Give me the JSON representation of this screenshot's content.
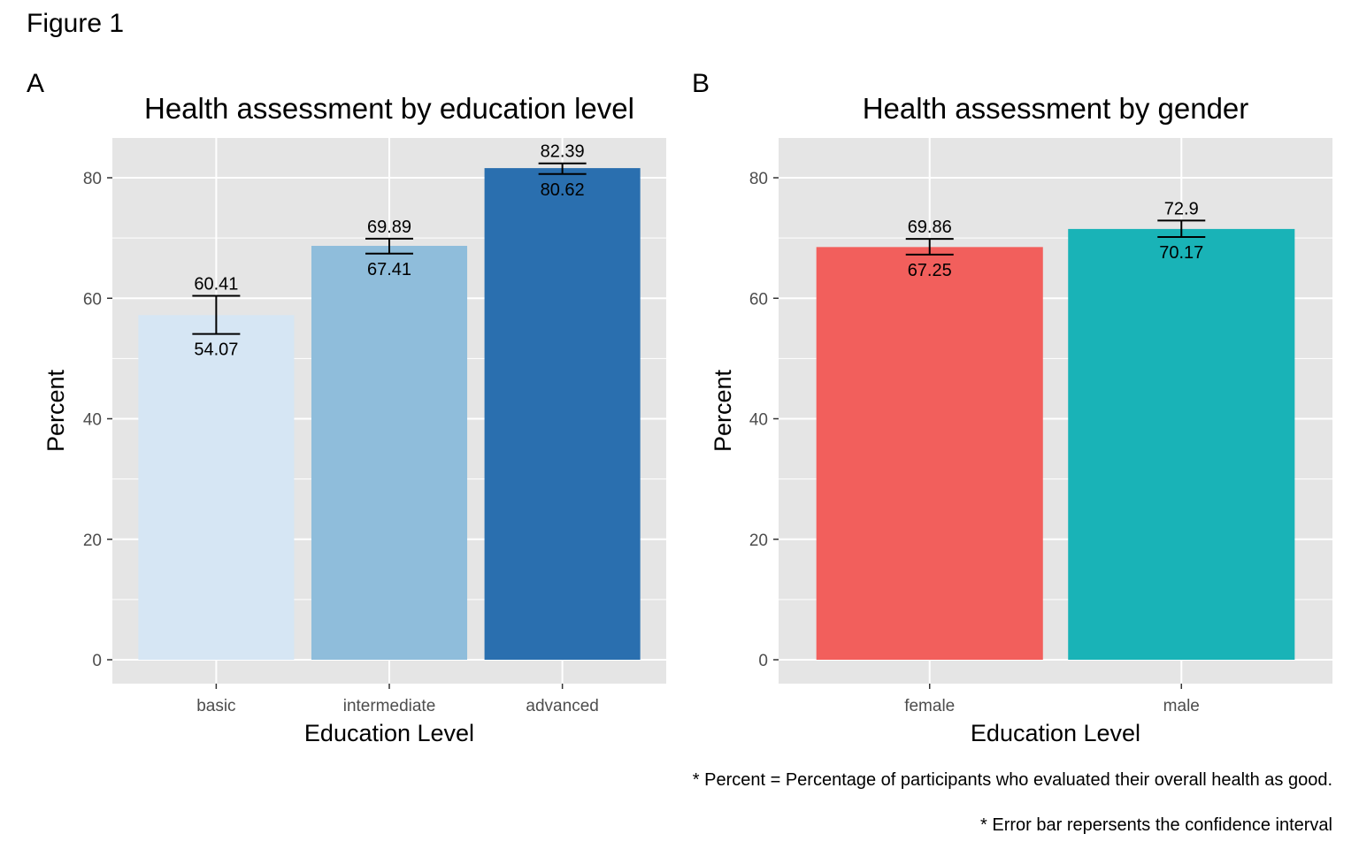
{
  "figure": {
    "title": "Figure 1",
    "footnotes": [
      "* Percent = Percentage of participants who evaluated their overall health as good.",
      "* Error bar repersents the confidence interval"
    ]
  },
  "chart_data": [
    {
      "panel_tag": "A",
      "type": "bar",
      "title": "Health assessment by education level",
      "xlabel": "Education Level",
      "ylabel": "Percent",
      "ylim": [
        0,
        87
      ],
      "yticks": [
        0,
        20,
        40,
        60,
        80
      ],
      "categories": [
        "basic",
        "intermediate",
        "advanced"
      ],
      "values": [
        57.2,
        68.7,
        81.6
      ],
      "ci_lower": [
        54.07,
        67.41,
        80.62
      ],
      "ci_upper": [
        60.41,
        69.89,
        82.39
      ],
      "ci_lower_labels": [
        "54.07",
        "67.41",
        "80.62"
      ],
      "ci_upper_labels": [
        "60.41",
        "69.89",
        "82.39"
      ],
      "colors": [
        "#D6E6F4",
        "#8FBDDB",
        "#2A6FAF"
      ],
      "grid": true
    },
    {
      "panel_tag": "B",
      "type": "bar",
      "title": "Health assessment by gender",
      "xlabel": "Education Level",
      "ylabel": "Percent",
      "ylim": [
        0,
        87
      ],
      "yticks": [
        0,
        20,
        40,
        60,
        80
      ],
      "categories": [
        "female",
        "male"
      ],
      "values": [
        68.5,
        71.5
      ],
      "ci_lower": [
        67.25,
        70.17
      ],
      "ci_upper": [
        69.86,
        72.9
      ],
      "ci_lower_labels": [
        "67.25",
        "70.17"
      ],
      "ci_upper_labels": [
        "69.86",
        "72.9"
      ],
      "colors": [
        "#F25F5C",
        "#19B3B7"
      ],
      "grid": true
    }
  ],
  "style": {
    "panel_background": "#E5E5E5",
    "grid_color": "#FFFFFF",
    "tick_text_color": "#4D4D4D"
  }
}
